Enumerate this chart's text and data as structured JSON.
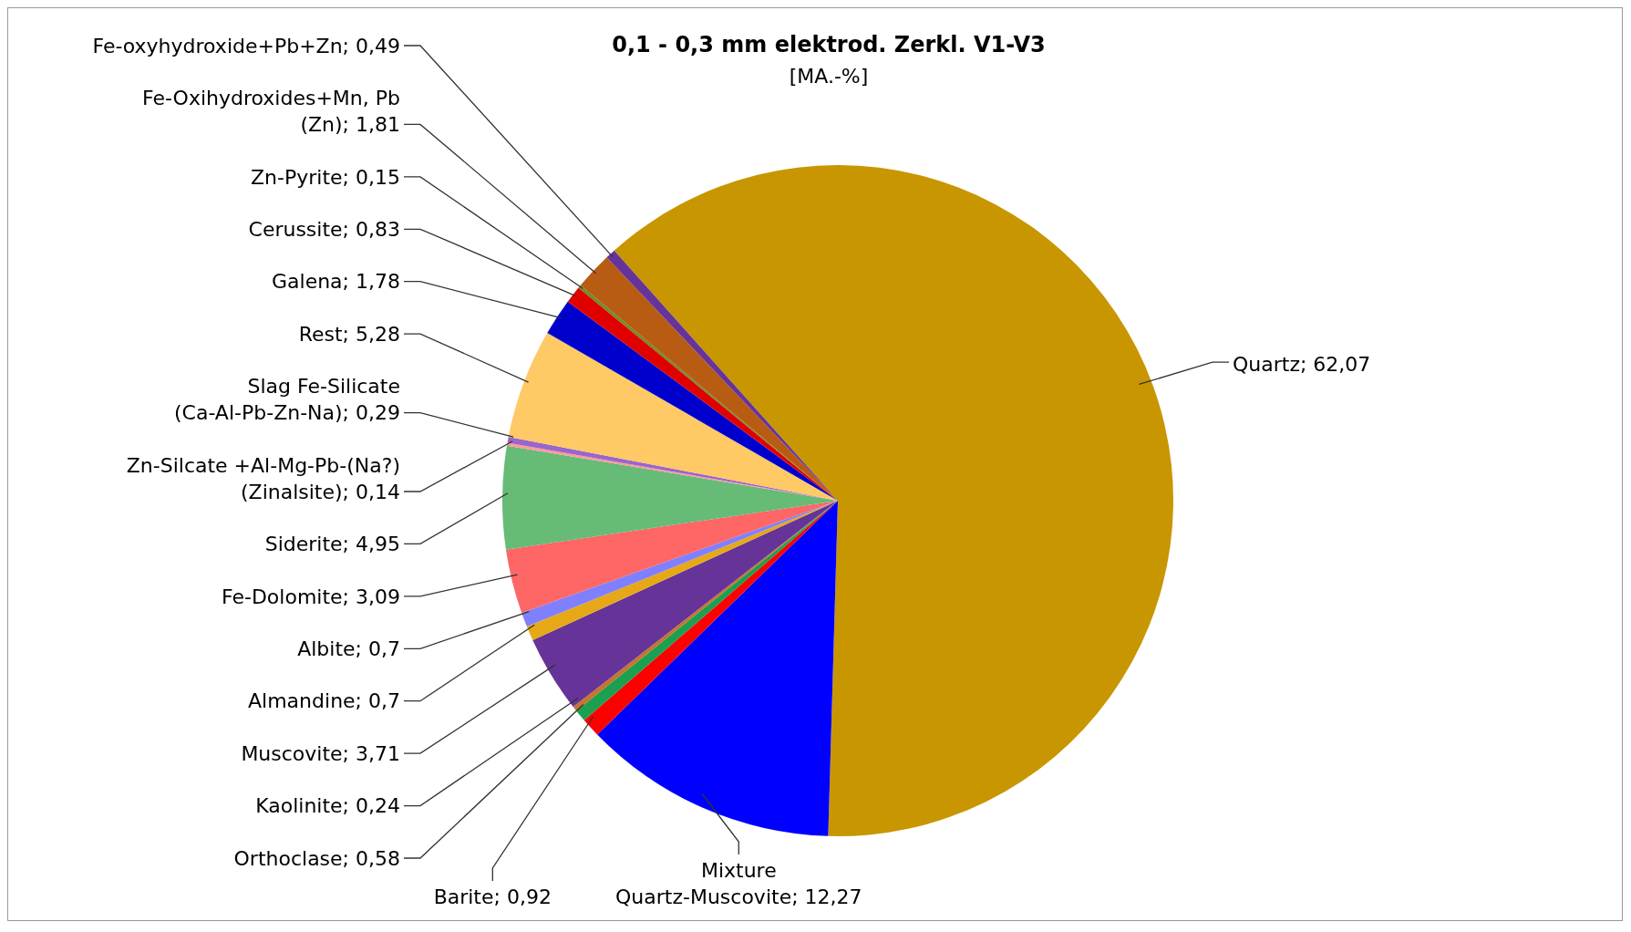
{
  "chart_data": {
    "type": "pie",
    "title": "0,1 - 0,3 mm elektrod. Zerkl. V1-V3",
    "subtitle": "[MA.-%]",
    "categories": [
      "Quartz",
      "Mixture Quartz-Muscovite",
      "Barite",
      "Orthoclase",
      "Kaolinite",
      "Muscovite",
      "Almandine",
      "Albite",
      "Fe-Dolomite",
      "Siderite",
      "Zn-Silcate +Al-Mg-Pb-(Na?) (Zinalsite)",
      "Slag Fe-Silicate (Ca-Al-Pb-Zn-Na)",
      "Rest",
      "Galena",
      "Cerussite",
      "Zn-Pyrite",
      "Fe-Oxihydroxides+Mn, Pb (Zn)",
      "Fe-oxyhydroxide+Pb+Zn"
    ],
    "values": [
      62.07,
      12.27,
      0.92,
      0.58,
      0.24,
      3.71,
      0.7,
      0.7,
      3.09,
      4.95,
      0.14,
      0.29,
      5.28,
      1.78,
      0.83,
      0.15,
      1.81,
      0.49
    ],
    "value_labels": [
      "62,07",
      "12,27",
      "0,92",
      "0,58",
      "0,24",
      "3,71",
      "0,7",
      "0,7",
      "3,09",
      "4,95",
      "0,14",
      "0,29",
      "5,28",
      "1,78",
      "0,83",
      "0,15",
      "1,81",
      "0,49"
    ],
    "colors": [
      "#c89600",
      "#0000ff",
      "#ff0000",
      "#1aa050",
      "#c8742d",
      "#663399",
      "#e6a817",
      "#8080ff",
      "#ff6666",
      "#66bb77",
      "#ff9999",
      "#9966cc",
      "#ffc966",
      "#0000cc",
      "#e00000",
      "#6b8e23",
      "#b85c14",
      "#663399"
    ]
  }
}
